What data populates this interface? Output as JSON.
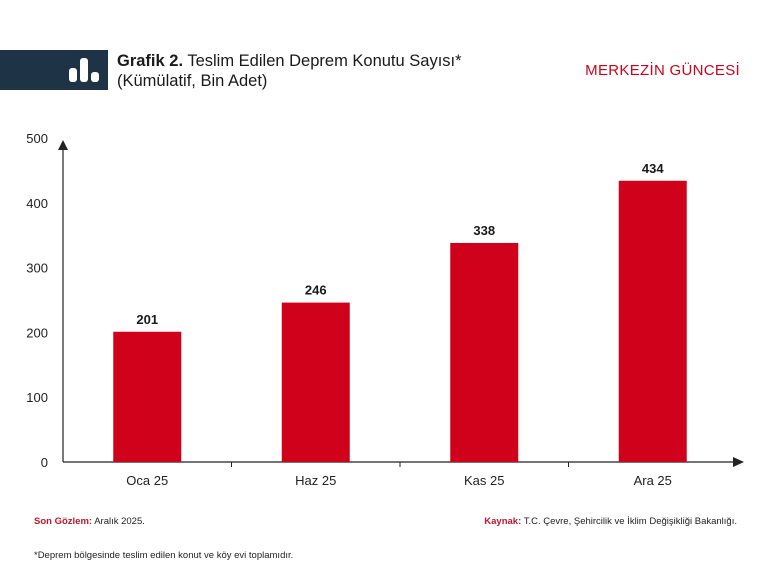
{
  "header": {
    "title_prefix": "Grafik 2.",
    "title_line1": "Teslim Edilen Deprem Konutu Sayısı*",
    "title_line2": "(Kümülatif, Bin Adet)",
    "brand": "MERKEZİN GÜNCESİ",
    "icon": "bar-chart-icon"
  },
  "colors": {
    "bar": "#d0021b",
    "brand": "#d0021b",
    "header_band": "#1f3347",
    "axis": "#222222"
  },
  "chart_data": {
    "type": "bar",
    "categories": [
      "Oca 25",
      "Haz 25",
      "Kas 25",
      "Ara 25"
    ],
    "values": [
      201,
      246,
      338,
      434
    ],
    "data_labels": [
      "201",
      "246",
      "338",
      "434"
    ],
    "yticks": [
      0,
      100,
      200,
      300,
      400,
      500
    ],
    "ylim": [
      0,
      500
    ],
    "grid": false
  },
  "footer": {
    "last_obs_label": "Son Gözlem:",
    "last_obs_value": "Aralık 2025.",
    "source_label": "Kaynak:",
    "source_value": "T.C. Çevre, Şehircilik ve İklim Değişikliği Bakanlığı.",
    "footnote": "*Deprem bölgesinde teslim edilen konut ve köy evi toplamıdır."
  }
}
